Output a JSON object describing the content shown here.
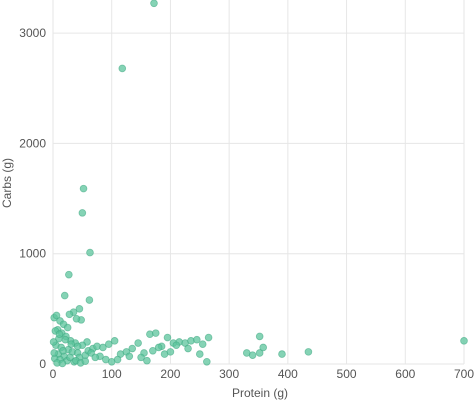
{
  "chart_data": {
    "type": "scatter",
    "title": "",
    "xlabel": "Protein (g)",
    "ylabel": "Carbs (g)",
    "xlim": [
      0,
      700
    ],
    "ylim": [
      0,
      3300
    ],
    "xticks": [
      0,
      100,
      200,
      300,
      400,
      500,
      600,
      700
    ],
    "yticks": [
      0,
      1000,
      2000,
      3000
    ],
    "grid": true,
    "marker_color": "#5cc49c",
    "series": [
      {
        "points": [
          [
            172,
            3270
          ],
          [
            118,
            2680
          ],
          [
            52,
            1590
          ],
          [
            50,
            1370
          ],
          [
            63,
            1010
          ],
          [
            27,
            810
          ],
          [
            62,
            580
          ],
          [
            20,
            620
          ],
          [
            45,
            500
          ],
          [
            35,
            470
          ],
          [
            28,
            450
          ],
          [
            48,
            400
          ],
          [
            40,
            410
          ],
          [
            2,
            420
          ],
          [
            6,
            440
          ],
          [
            12,
            390
          ],
          [
            18,
            360
          ],
          [
            25,
            330
          ],
          [
            8,
            310
          ],
          [
            15,
            280
          ],
          [
            22,
            250
          ],
          [
            10,
            230
          ],
          [
            30,
            210
          ],
          [
            38,
            190
          ],
          [
            5,
            170
          ],
          [
            14,
            150
          ],
          [
            26,
            130
          ],
          [
            33,
            110
          ],
          [
            42,
            100
          ],
          [
            9,
            90
          ],
          [
            19,
            70
          ],
          [
            3,
            50
          ],
          [
            12,
            40
          ],
          [
            24,
            30
          ],
          [
            36,
            20
          ],
          [
            7,
            10
          ],
          [
            16,
            5
          ],
          [
            45,
            60
          ],
          [
            55,
            80
          ],
          [
            60,
            120
          ],
          [
            68,
            140
          ],
          [
            75,
            160
          ],
          [
            85,
            150
          ],
          [
            95,
            180
          ],
          [
            105,
            210
          ],
          [
            80,
            70
          ],
          [
            90,
            40
          ],
          [
            100,
            20
          ],
          [
            115,
            90
          ],
          [
            125,
            110
          ],
          [
            135,
            140
          ],
          [
            145,
            190
          ],
          [
            155,
            100
          ],
          [
            165,
            270
          ],
          [
            175,
            280
          ],
          [
            185,
            160
          ],
          [
            195,
            240
          ],
          [
            205,
            190
          ],
          [
            215,
            200
          ],
          [
            225,
            190
          ],
          [
            235,
            210
          ],
          [
            245,
            220
          ],
          [
            255,
            180
          ],
          [
            265,
            240
          ],
          [
            150,
            60
          ],
          [
            160,
            30
          ],
          [
            170,
            120
          ],
          [
            180,
            150
          ],
          [
            190,
            90
          ],
          [
            200,
            110
          ],
          [
            210,
            170
          ],
          [
            230,
            140
          ],
          [
            250,
            90
          ],
          [
            262,
            20
          ],
          [
            110,
            40
          ],
          [
            130,
            70
          ],
          [
            330,
            100
          ],
          [
            340,
            80
          ],
          [
            352,
            250
          ],
          [
            358,
            150
          ],
          [
            352,
            100
          ],
          [
            390,
            90
          ],
          [
            435,
            110
          ],
          [
            700,
            210
          ],
          [
            58,
            200
          ],
          [
            50,
            170
          ],
          [
            42,
            160
          ],
          [
            65,
            100
          ],
          [
            72,
            60
          ],
          [
            4,
            300
          ],
          [
            11,
            270
          ],
          [
            21,
            220
          ],
          [
            31,
            180
          ],
          [
            1,
            200
          ],
          [
            17,
            120
          ],
          [
            29,
            60
          ],
          [
            39,
            30
          ],
          [
            47,
            10
          ],
          [
            55,
            25
          ],
          [
            2,
            100
          ]
        ]
      }
    ]
  }
}
